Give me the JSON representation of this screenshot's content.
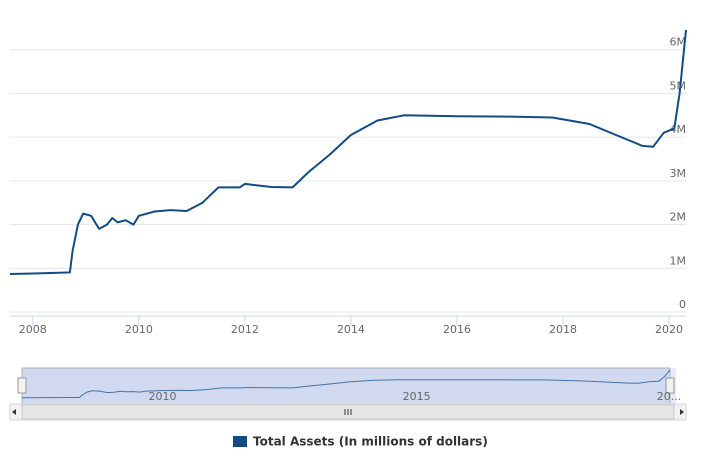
{
  "chart_data": {
    "type": "line",
    "x": [
      2007.57,
      2008.0,
      2008.5,
      2008.7,
      2008.75,
      2008.85,
      2008.95,
      2009.1,
      2009.25,
      2009.4,
      2009.5,
      2009.6,
      2009.75,
      2009.9,
      2010.0,
      2010.3,
      2010.6,
      2010.9,
      2011.2,
      2011.5,
      2011.9,
      2012.0,
      2012.5,
      2012.9,
      2013.2,
      2013.6,
      2014.0,
      2014.5,
      2015.0,
      2016.0,
      2017.0,
      2017.8,
      2018.5,
      2019.0,
      2019.5,
      2019.7,
      2019.9,
      2020.1,
      2020.2,
      2020.32
    ],
    "series": [
      {
        "name": "Total Assets (In millions of dollars)",
        "color": "#144b84",
        "values": [
          870000,
          880000,
          900000,
          905000,
          1400000,
          2000000,
          2250000,
          2200000,
          1900000,
          2000000,
          2150000,
          2050000,
          2100000,
          2000000,
          2200000,
          2300000,
          2330000,
          2310000,
          2500000,
          2850000,
          2850000,
          2930000,
          2860000,
          2850000,
          3200000,
          3600000,
          4050000,
          4380000,
          4500000,
          4480000,
          4470000,
          4450000,
          4300000,
          4050000,
          3800000,
          3780000,
          4100000,
          4200000,
          5000000,
          6450000
        ]
      }
    ],
    "xlim": [
      2007.57,
      2020.32
    ],
    "xticks": [
      2008,
      2010,
      2012,
      2014,
      2016,
      2018,
      2020
    ],
    "ylim": [
      0,
      7000000
    ],
    "yticks": [
      0,
      {
        "value": 1000000,
        "label": "1M"
      },
      {
        "value": 2000000,
        "label": "2M"
      },
      {
        "value": 3000000,
        "label": "3M"
      },
      {
        "value": 4000000,
        "label": "4M"
      },
      {
        "value": 5000000,
        "label": "5M"
      },
      {
        "value": 6000000,
        "label": "6M"
      }
    ],
    "grid": true,
    "navigator": {
      "xticks": [
        2010,
        2015,
        {
          "value": 2020,
          "label": "20..."
        }
      ]
    }
  }
}
